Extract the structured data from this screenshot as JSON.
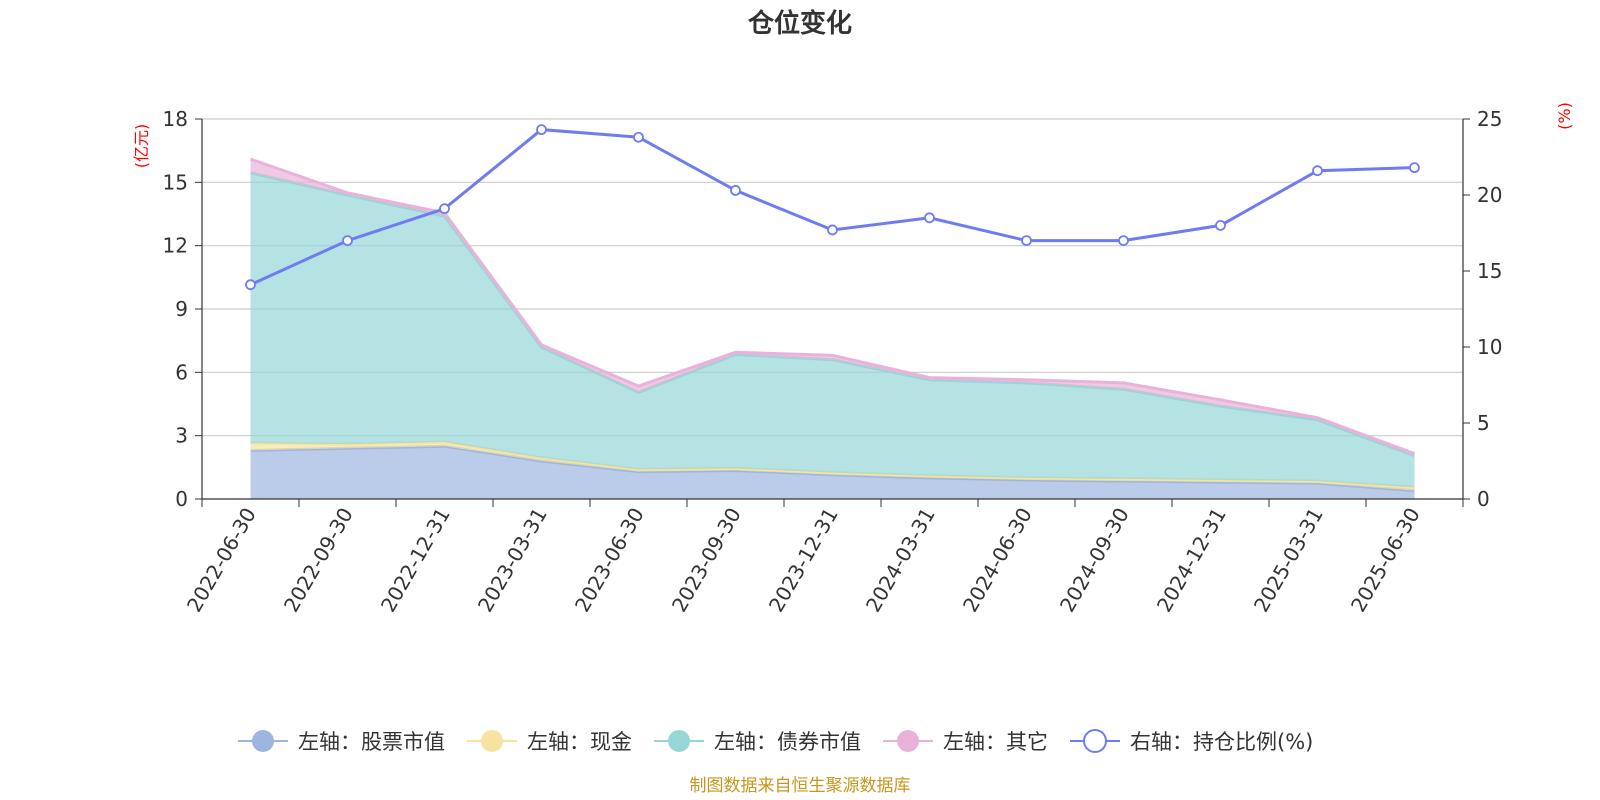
{
  "chart_data": {
    "type": "area",
    "title": "仓位变化",
    "left_axis_unit": "(亿元)",
    "right_axis_unit": "(%)",
    "ylim_left": [
      0,
      18
    ],
    "yticks_left": [
      "0",
      "3",
      "6",
      "9",
      "12",
      "15",
      "18"
    ],
    "ylim_right": [
      0,
      25
    ],
    "yticks_right": [
      "0",
      "5",
      "10",
      "15",
      "20",
      "25"
    ],
    "categories": [
      "2022-06-30",
      "2022-09-30",
      "2022-12-31",
      "2023-03-31",
      "2023-06-30",
      "2023-09-30",
      "2023-12-31",
      "2024-03-31",
      "2024-06-30",
      "2024-09-30",
      "2024-12-31",
      "2025-03-31",
      "2025-06-30"
    ],
    "stacked_series": [
      {
        "name": "左轴：股票市值",
        "color": "#9db6e0",
        "values": [
          2.3,
          2.4,
          2.5,
          1.8,
          1.3,
          1.35,
          1.15,
          1.0,
          0.9,
          0.85,
          0.8,
          0.75,
          0.4
        ]
      },
      {
        "name": "左轴：现金",
        "color": "#f6e3a1",
        "values": [
          0.35,
          0.2,
          0.2,
          0.15,
          0.1,
          0.1,
          0.1,
          0.1,
          0.1,
          0.1,
          0.1,
          0.1,
          0.15
        ]
      },
      {
        "name": "左轴：债券市值",
        "color": "#96d6d6",
        "values": [
          12.8,
          11.8,
          10.7,
          5.25,
          3.65,
          5.4,
          5.35,
          4.55,
          4.5,
          4.25,
          3.5,
          2.9,
          1.5
        ]
      },
      {
        "name": "左轴：其它",
        "color": "#e9b3d9",
        "values": [
          0.65,
          0.1,
          0.15,
          0.1,
          0.3,
          0.1,
          0.2,
          0.1,
          0.15,
          0.3,
          0.3,
          0.1,
          0.1
        ]
      }
    ],
    "line_series": {
      "name": "右轴：持仓比例(%)",
      "color": "#6e7cf0",
      "values": [
        14.1,
        17.0,
        19.1,
        24.3,
        23.8,
        20.3,
        17.7,
        18.5,
        17.0,
        17.0,
        18.0,
        21.6,
        21.8
      ]
    },
    "grid": true,
    "legend_position": "bottom"
  },
  "source": "制图数据来自恒生聚源数据库"
}
